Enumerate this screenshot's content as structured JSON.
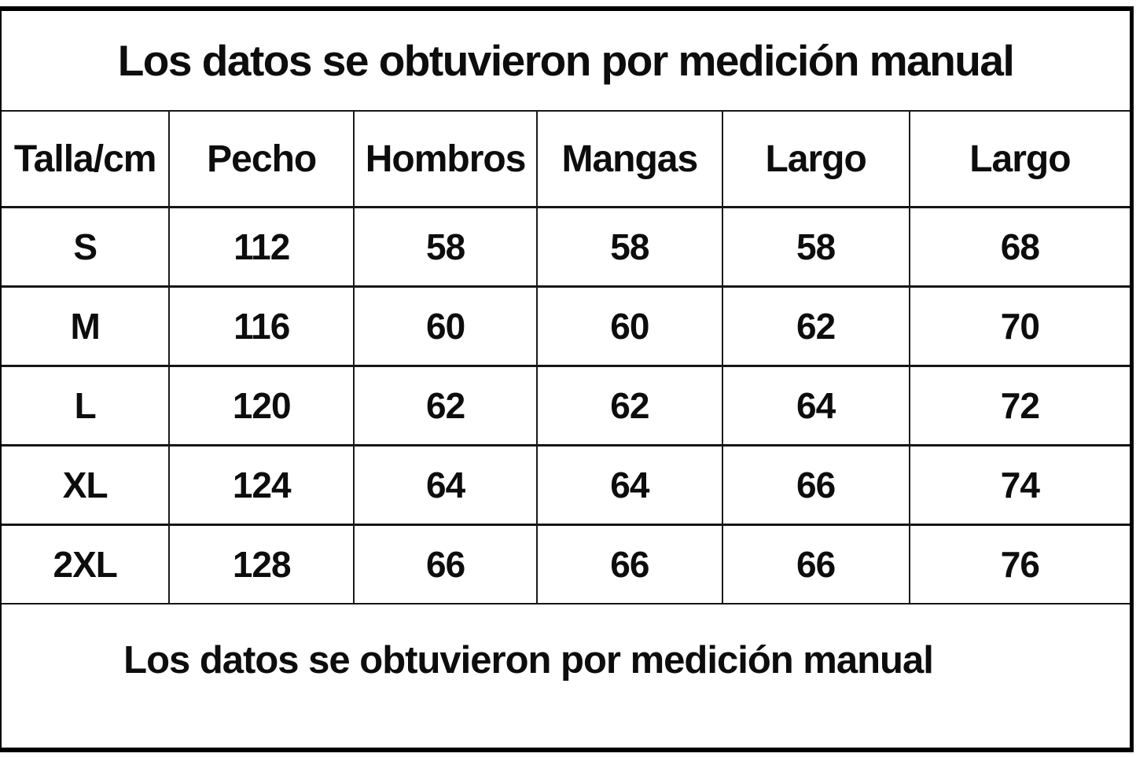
{
  "colors": {
    "background": "#ffffff",
    "border": "#000000",
    "text": "#0d0d0d"
  },
  "chart_data": {
    "type": "table",
    "title": "Los datos se obtuvieron por medición manual",
    "footer": "Los datos se obtuvieron por medición manual",
    "columns": [
      "Talla/cm",
      "Pecho",
      "Hombros",
      "Mangas",
      "Largo",
      "Largo"
    ],
    "rows": [
      [
        "S",
        "112",
        "58",
        "58",
        "58",
        "68"
      ],
      [
        "M",
        "116",
        "60",
        "60",
        "62",
        "70"
      ],
      [
        "L",
        "120",
        "62",
        "62",
        "64",
        "72"
      ],
      [
        "XL",
        "124",
        "64",
        "64",
        "66",
        "74"
      ],
      [
        "2XL",
        "128",
        "66",
        "66",
        "66",
        "76"
      ]
    ],
    "layout": {
      "grid": "on",
      "title_position": "top-center",
      "footer_position": "bottom-center"
    }
  }
}
